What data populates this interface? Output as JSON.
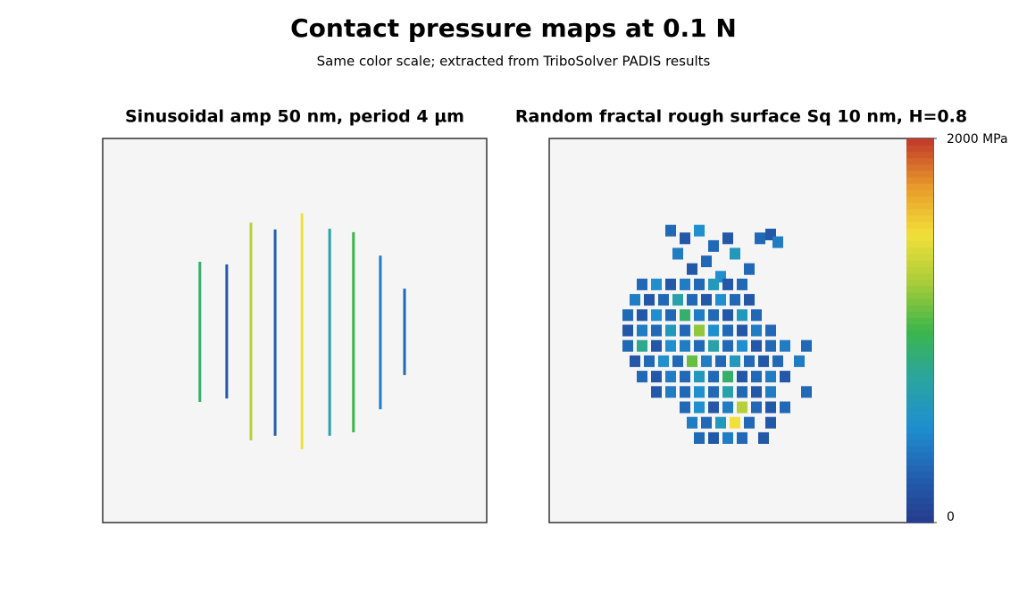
{
  "chart_data": [
    {
      "type": "stripes",
      "title": "Sinusoidal amp 50 nm, period 4 µm",
      "xlim": [
        0,
        100
      ],
      "ylim": [
        0,
        100
      ],
      "x": [
        25.3,
        32.3,
        38.6,
        44.9,
        51.9,
        59.1,
        65.3,
        72.3,
        78.6
      ],
      "y_top": [
        67.9,
        67.2,
        78.1,
        76.3,
        80.5,
        76.5,
        75.6,
        69.5,
        60.9
      ],
      "y_bottom": [
        31.4,
        32.3,
        21.4,
        22.6,
        19.1,
        22.6,
        23.5,
        29.5,
        38.4
      ],
      "values": [
        900,
        200,
        1300,
        250,
        1500,
        700,
        1000,
        400,
        300
      ]
    },
    {
      "type": "cells",
      "title": "Random fractal rough surface Sq 10 nm, H=0.8",
      "xlim": [
        0,
        100
      ],
      "ylim": [
        0,
        100
      ],
      "x": [
        34,
        38,
        42,
        46,
        50,
        36,
        44,
        52,
        59,
        62,
        64,
        40,
        48,
        56,
        26,
        30,
        34,
        38,
        42,
        46,
        50,
        54,
        24,
        28,
        32,
        36,
        40,
        44,
        48,
        52,
        56,
        22,
        26,
        30,
        34,
        38,
        42,
        46,
        50,
        54,
        58,
        22,
        26,
        30,
        34,
        38,
        42,
        46,
        50,
        54,
        58,
        62,
        22,
        26,
        30,
        34,
        38,
        42,
        46,
        50,
        54,
        58,
        62,
        66,
        72,
        24,
        28,
        32,
        36,
        40,
        44,
        48,
        52,
        56,
        60,
        64,
        70,
        26,
        30,
        34,
        38,
        42,
        46,
        50,
        54,
        58,
        62,
        66,
        30,
        34,
        38,
        42,
        46,
        50,
        54,
        58,
        62,
        72,
        38,
        42,
        46,
        50,
        54,
        58,
        62,
        66,
        40,
        44,
        48,
        52,
        56,
        62,
        42,
        46,
        50,
        54,
        60
      ],
      "y": [
        76,
        74,
        76,
        72,
        74,
        70,
        68,
        70,
        74,
        75,
        73,
        66,
        64,
        66,
        62,
        62,
        62,
        62,
        62,
        62,
        62,
        62,
        58,
        58,
        58,
        58,
        58,
        58,
        58,
        58,
        58,
        54,
        54,
        54,
        54,
        54,
        54,
        54,
        54,
        54,
        54,
        50,
        50,
        50,
        50,
        50,
        50,
        50,
        50,
        50,
        50,
        50,
        46,
        46,
        46,
        46,
        46,
        46,
        46,
        46,
        46,
        46,
        46,
        46,
        46,
        42,
        42,
        42,
        42,
        42,
        42,
        42,
        42,
        42,
        42,
        42,
        42,
        38,
        38,
        38,
        38,
        38,
        38,
        38,
        38,
        38,
        38,
        38,
        34,
        34,
        34,
        34,
        34,
        34,
        34,
        34,
        34,
        34,
        30,
        30,
        30,
        30,
        30,
        30,
        30,
        30,
        26,
        26,
        26,
        26,
        26,
        26,
        22,
        22,
        22,
        22,
        22
      ],
      "values": [
        300,
        200,
        500,
        300,
        200,
        400,
        300,
        600,
        300,
        200,
        400,
        200,
        500,
        300,
        300,
        500,
        200,
        400,
        300,
        600,
        200,
        300,
        400,
        200,
        300,
        700,
        300,
        200,
        500,
        300,
        200,
        300,
        200,
        500,
        300,
        900,
        400,
        300,
        200,
        600,
        300,
        200,
        400,
        300,
        600,
        300,
        1200,
        500,
        300,
        200,
        400,
        300,
        300,
        800,
        200,
        500,
        400,
        300,
        700,
        300,
        500,
        200,
        300,
        400,
        300,
        200,
        300,
        500,
        300,
        1100,
        400,
        300,
        600,
        300,
        200,
        300,
        400,
        300,
        200,
        400,
        300,
        600,
        300,
        900,
        200,
        300,
        400,
        200,
        200,
        400,
        300,
        500,
        300,
        700,
        300,
        200,
        400,
        300,
        300,
        500,
        200,
        400,
        1300,
        300,
        200,
        300,
        400,
        300,
        600,
        1500,
        300,
        200,
        300,
        200,
        400,
        300,
        200
      ]
    }
  ],
  "colorbar": {
    "clim": [
      0,
      2000
    ],
    "colormap": [
      "#263a8c",
      "#2260b0",
      "#1f8fd0",
      "#2aa5a0",
      "#3cb54a",
      "#a8cc3a",
      "#f2e03a",
      "#e89a2a",
      "#c0392b"
    ],
    "ticks": [
      {
        "value": 2000,
        "label": "2000 MPa"
      },
      0
    ]
  },
  "title": "Contact pressure maps at 0.1 N",
  "subtitle": "Same color scale; extracted from TriboSolver PADIS results"
}
